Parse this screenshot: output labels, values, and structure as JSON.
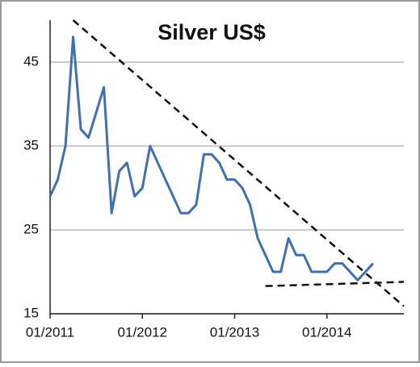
{
  "chart_data": {
    "type": "line",
    "title": "Silver US$",
    "x": [
      "2011-01",
      "2011-02",
      "2011-03",
      "2011-04",
      "2011-05",
      "2011-06",
      "2011-07",
      "2011-08",
      "2011-09",
      "2011-10",
      "2011-11",
      "2011-12",
      "2012-01",
      "2012-02",
      "2012-03",
      "2012-04",
      "2012-05",
      "2012-06",
      "2012-07",
      "2012-08",
      "2012-09",
      "2012-10",
      "2012-11",
      "2012-12",
      "2013-01",
      "2013-02",
      "2013-03",
      "2013-04",
      "2013-05",
      "2013-06",
      "2013-07",
      "2013-08",
      "2013-09",
      "2013-10",
      "2013-11",
      "2013-12",
      "2014-01",
      "2014-02",
      "2014-03",
      "2014-04",
      "2014-05",
      "2014-06",
      "2014-07"
    ],
    "series": [
      {
        "name": "Silver",
        "color": "#3f6fb5",
        "values": [
          29,
          31,
          35,
          48,
          37,
          36,
          39,
          42,
          27,
          32,
          33,
          29,
          30,
          35,
          33,
          31,
          29,
          27,
          27,
          28,
          34,
          34,
          33,
          31,
          31,
          30,
          28,
          24,
          22,
          20,
          20,
          24,
          22,
          22,
          20,
          20,
          20,
          21,
          21,
          20,
          19,
          20,
          21
        ]
      }
    ],
    "trendlines": [
      {
        "x": [
          "2011-04",
          "2014-11"
        ],
        "y": [
          50,
          15.9
        ]
      },
      {
        "x": [
          "2013-05",
          "2014-11"
        ],
        "y": [
          18.3,
          18.8
        ]
      }
    ],
    "xlim": [
      "2011-01",
      "2014-11"
    ],
    "xticks": [
      {
        "value": "2011-01",
        "label": "01/2011"
      },
      {
        "value": "2012-01",
        "label": "01/2012"
      },
      {
        "value": "2013-01",
        "label": "01/2013"
      },
      {
        "value": "2014-01",
        "label": "01/2014"
      }
    ],
    "ylim": [
      15,
      50
    ],
    "yticks": [
      15,
      25,
      35,
      45
    ],
    "grid": true
  }
}
